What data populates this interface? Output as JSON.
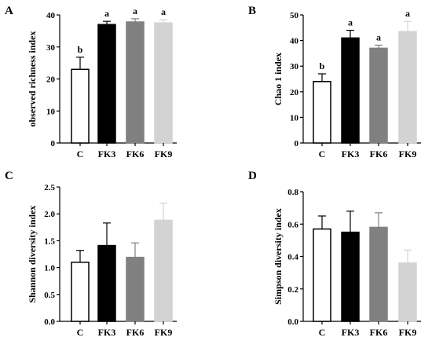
{
  "colors": {
    "C": {
      "fill": "#ffffff",
      "stroke": "#000000"
    },
    "FK3": {
      "fill": "#000000",
      "stroke": "#000000"
    },
    "FK6": {
      "fill": "#808080",
      "stroke": "#808080"
    },
    "FK9": {
      "fill": "#d3d3d3",
      "stroke": "#d3d3d3"
    }
  },
  "chart_data": [
    {
      "type": "bar",
      "panel": "A",
      "ylabel": "observed richness index",
      "categories": [
        "C",
        "FK3",
        "FK6",
        "FK9"
      ],
      "values": [
        23,
        37,
        37.8,
        37.5
      ],
      "errors": [
        3.8,
        1,
        1,
        1
      ],
      "significance": [
        "b",
        "a",
        "a",
        "a"
      ],
      "ylim": [
        0,
        40
      ],
      "yticks": [
        0,
        10,
        20,
        30,
        40
      ],
      "ytick_labels": [
        "0",
        "10",
        "20",
        "30",
        "40"
      ]
    },
    {
      "type": "bar",
      "panel": "B",
      "ylabel": "Chao 1 index",
      "categories": [
        "C",
        "FK3",
        "FK6",
        "FK9"
      ],
      "values": [
        24,
        41,
        37,
        43.5
      ],
      "errors": [
        3,
        3,
        1.2,
        4
      ],
      "significance": [
        "b",
        "a",
        "a",
        "a"
      ],
      "ylim": [
        0,
        50
      ],
      "yticks": [
        0,
        10,
        20,
        30,
        40,
        50
      ],
      "ytick_labels": [
        "0",
        "10",
        "20",
        "30",
        "40",
        "50"
      ]
    },
    {
      "type": "bar",
      "panel": "C",
      "ylabel": "Shannon diversity index",
      "categories": [
        "C",
        "FK3",
        "FK6",
        "FK9"
      ],
      "values": [
        1.1,
        1.41,
        1.19,
        1.88
      ],
      "errors": [
        0.22,
        0.42,
        0.27,
        0.32
      ],
      "significance": [
        "",
        "",
        "",
        ""
      ],
      "ylim": [
        0,
        2.5
      ],
      "yticks": [
        0,
        0.5,
        1,
        1.5,
        2,
        2.5
      ],
      "ytick_labels": [
        "0.0",
        "0.5",
        "1.0",
        "1.5",
        "2.0",
        "2.5"
      ]
    },
    {
      "type": "bar",
      "panel": "D",
      "ylabel": "Simpson diversity index",
      "categories": [
        "C",
        "FK3",
        "FK6",
        "FK9"
      ],
      "values": [
        0.57,
        0.55,
        0.58,
        0.36
      ],
      "errors": [
        0.08,
        0.13,
        0.09,
        0.08
      ],
      "significance": [
        "",
        "",
        "",
        ""
      ],
      "ylim": [
        0,
        0.8
      ],
      "yticks": [
        0,
        0.2,
        0.4,
        0.6,
        0.8
      ],
      "ytick_labels": [
        "0.0",
        "0.2",
        "0.4",
        "0.6",
        "0.8"
      ]
    }
  ]
}
